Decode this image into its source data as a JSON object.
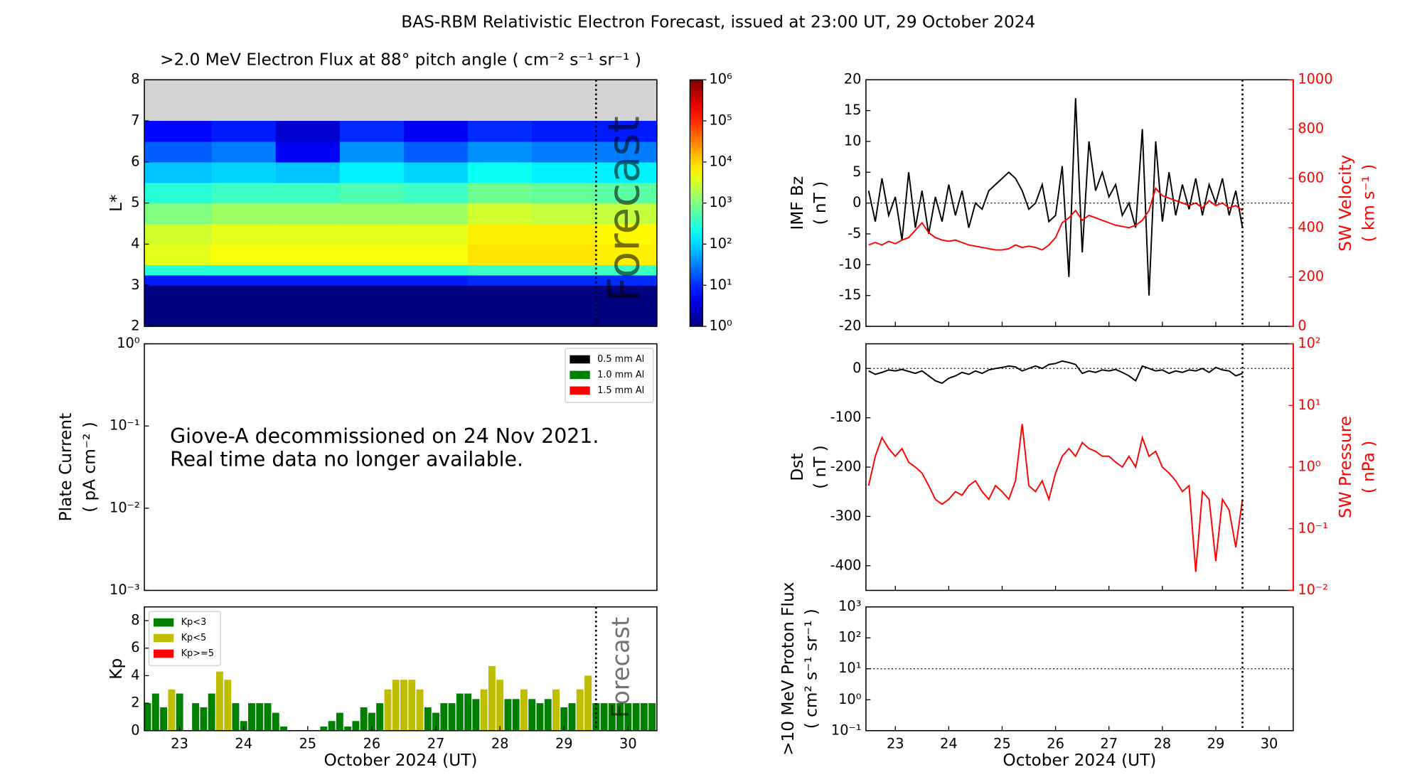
{
  "title": "BAS-RBM Relativistic Electron Forecast, issued at 23:00 UT, 29 October 2024",
  "chart_data": [
    {
      "type": "heatmap",
      "title": ">2.0 MeV Electron Flux at 88° pitch angle ( cm⁻² s⁻¹ sr⁻¹ )",
      "ylabel": "L*",
      "xlim": [
        22.45,
        30.45
      ],
      "ylim": [
        2,
        8
      ],
      "yticks": [
        2,
        3,
        4,
        5,
        6,
        7,
        8
      ],
      "no_data_color": "#d3d3d3",
      "x_edges": [
        22.45,
        23.5,
        24.5,
        25.5,
        26.5,
        27.5,
        28.5,
        29.5,
        30.45
      ],
      "y_edges": [
        2,
        3,
        3.25,
        3.5,
        4,
        4.5,
        5,
        5.5,
        6,
        6.5,
        7
      ],
      "values": [
        [
          1,
          1,
          1,
          1,
          1,
          1,
          1,
          1
        ],
        [
          8,
          8,
          8,
          8,
          8,
          10,
          10,
          10
        ],
        [
          300,
          300,
          300,
          300,
          300,
          400,
          400,
          400
        ],
        [
          4000,
          5000,
          5000,
          5000,
          5000,
          8000,
          8000,
          7000
        ],
        [
          3000,
          4000,
          4000,
          4000,
          4000,
          7000,
          7000,
          6000
        ],
        [
          1000,
          1500,
          1500,
          1500,
          1500,
          3000,
          2500,
          2500
        ],
        [
          300,
          400,
          400,
          500,
          400,
          800,
          700,
          600
        ],
        [
          80,
          100,
          80,
          150,
          100,
          200,
          150,
          150
        ],
        [
          20,
          30,
          5,
          40,
          20,
          40,
          30,
          30
        ],
        [
          6,
          8,
          3,
          10,
          5,
          10,
          8,
          8
        ]
      ],
      "colorscale": "jet",
      "color_lim": [
        1,
        1000000
      ],
      "colorbar_ticks": [
        {
          "value": 1,
          "label": "10⁰"
        },
        {
          "value": 10,
          "label": "10¹"
        },
        {
          "value": 100,
          "label": "10²"
        },
        {
          "value": 1000,
          "label": "10³"
        },
        {
          "value": 10000,
          "label": "10⁴"
        },
        {
          "value": 100000,
          "label": "10⁵"
        },
        {
          "value": 1000000,
          "label": "10⁶"
        }
      ],
      "watermark": "Forecast",
      "forecast_line": 29.5
    },
    {
      "type": "line",
      "ylabel": [
        "Plate Current",
        "( pA cm⁻² )"
      ],
      "xlim": [
        22.45,
        30.45
      ],
      "log_y": true,
      "ylim": [
        0.001,
        1
      ],
      "yticks": [
        {
          "value": 0.001,
          "label": "10⁻³"
        },
        {
          "value": 0.01,
          "label": "10⁻²"
        },
        {
          "value": 0.1,
          "label": "10⁻¹"
        },
        {
          "value": 1,
          "label": "10⁰"
        }
      ],
      "x": [],
      "series": [
        {
          "name": "0.5 mm Al",
          "color": "#000000",
          "values": []
        },
        {
          "name": "1.0 mm Al",
          "color": "#008000",
          "values": []
        },
        {
          "name": "1.5 mm Al",
          "color": "#ff0000",
          "values": []
        }
      ],
      "legend": "upper right",
      "annotations": [
        "Giove-A decommissioned on 24 Nov 2021.",
        "Real time data no longer available."
      ]
    },
    {
      "type": "bar",
      "ylabel": "Kp",
      "xlabel": "October 2024 (UT)",
      "xlim": [
        22.45,
        30.45
      ],
      "ylim": [
        0,
        9
      ],
      "yticks": [
        0,
        2,
        4,
        6,
        8
      ],
      "xticks": [
        23,
        24,
        25,
        26,
        27,
        28,
        29,
        30
      ],
      "series": [
        {
          "name": "Kp<3",
          "color": "#008000",
          "x": [
            22.5,
            22.625,
            22.75,
            23,
            23.25,
            23.375,
            23.5,
            23.875,
            24,
            24.125,
            24.25,
            24.375,
            24.5,
            24.625,
            25.25,
            25.375,
            25.5,
            25.625,
            25.75,
            25.875,
            26,
            26.125,
            26.875,
            27,
            27.125,
            27.25,
            27.375,
            27.5,
            27.625,
            28.125,
            28.25,
            28.5,
            28.625,
            28.75,
            29,
            29.125,
            29.5,
            29.625,
            29.75,
            29.875,
            30,
            30.125,
            30.25,
            30.375
          ],
          "values": [
            2.0,
            2.7,
            1.7,
            2.7,
            2.0,
            1.7,
            2.7,
            2.0,
            0.7,
            2.0,
            2.0,
            2.0,
            1.3,
            0.3,
            0.3,
            0.7,
            1.3,
            0.3,
            0.7,
            1.7,
            1.3,
            2.0,
            1.7,
            1.3,
            2.0,
            2.0,
            2.7,
            2.7,
            2.3,
            2.3,
            2.3,
            2.3,
            2.0,
            2.3,
            1.7,
            2.0,
            2.0,
            2.0,
            2.0,
            2.0,
            2.0,
            2.0,
            2.0,
            2.0
          ]
        },
        {
          "name": "Kp<5",
          "color": "#bfbf00",
          "x": [
            22.875,
            23.625,
            23.75,
            26.25,
            26.375,
            26.5,
            26.625,
            26.75,
            27.75,
            27.875,
            28,
            28.375,
            28.875,
            29.25,
            29.375
          ],
          "values": [
            3.0,
            4.3,
            3.7,
            3.0,
            3.7,
            3.7,
            3.7,
            3.0,
            3.0,
            4.7,
            3.7,
            3.0,
            3.0,
            3.0,
            4.0
          ]
        },
        {
          "name": "Kp>=5",
          "color": "#ff0000",
          "x": [],
          "values": []
        }
      ],
      "legend": "upper left",
      "watermark": "Forecast",
      "forecast_line": 29.5
    },
    {
      "type": "line",
      "ylabel": [
        "IMF Bz",
        "( nT )"
      ],
      "y2label": [
        "SW Velocity",
        "( km s⁻¹ )"
      ],
      "xlim": [
        22.45,
        30.45
      ],
      "ylim": [
        -20,
        20
      ],
      "yticks": [
        -20,
        -15,
        -10,
        -5,
        0,
        5,
        10,
        15,
        20
      ],
      "y2lim": [
        0,
        1000
      ],
      "y2ticks": [
        0,
        200,
        400,
        600,
        800,
        1000
      ],
      "y2color": "#ff0000",
      "hline": 0,
      "forecast_line": 29.5,
      "x": [
        22.5,
        22.625,
        22.75,
        22.875,
        23,
        23.125,
        23.25,
        23.375,
        23.5,
        23.625,
        23.75,
        23.875,
        24,
        24.125,
        24.25,
        24.375,
        24.5,
        24.625,
        24.75,
        24.875,
        25,
        25.125,
        25.25,
        25.375,
        25.5,
        25.625,
        25.75,
        25.875,
        26,
        26.125,
        26.25,
        26.375,
        26.5,
        26.625,
        26.75,
        26.875,
        27,
        27.125,
        27.25,
        27.375,
        27.5,
        27.625,
        27.75,
        27.875,
        28,
        28.125,
        28.25,
        28.375,
        28.5,
        28.625,
        28.75,
        28.875,
        29,
        29.125,
        29.25,
        29.375,
        29.5
      ],
      "series": [
        {
          "color": "#000000",
          "values": [
            2,
            -3,
            4,
            -2,
            1,
            -6,
            5,
            -4,
            2,
            -5,
            1,
            -3,
            3,
            -2,
            2,
            -4,
            0,
            -1,
            2,
            3,
            4,
            5,
            4,
            2,
            -1,
            0,
            3,
            -3,
            -2,
            6,
            -12,
            17,
            -8,
            10,
            2,
            5,
            1,
            3,
            -2,
            0,
            -4,
            12,
            -15,
            10,
            -3,
            5,
            -2,
            3,
            -1,
            4,
            -2,
            3,
            0,
            4,
            -2,
            2,
            -4
          ]
        },
        {
          "color": "#ff0000",
          "axis": "y2",
          "values": [
            330,
            340,
            330,
            345,
            335,
            350,
            360,
            390,
            420,
            380,
            360,
            350,
            345,
            350,
            340,
            330,
            325,
            320,
            315,
            310,
            310,
            315,
            330,
            320,
            325,
            320,
            310,
            330,
            360,
            420,
            440,
            470,
            430,
            450,
            440,
            430,
            420,
            410,
            405,
            400,
            410,
            430,
            470,
            560,
            530,
            520,
            510,
            500,
            490,
            500,
            480,
            510,
            490,
            500,
            480,
            490,
            470
          ]
        }
      ]
    },
    {
      "type": "line",
      "ylabel": [
        "Dst",
        "( nT )"
      ],
      "y2label": [
        "SW Pressure",
        "( nPa )"
      ],
      "xlim": [
        22.45,
        30.45
      ],
      "ylim": [
        -450,
        50
      ],
      "yticks": [
        -400,
        -300,
        -200,
        -100,
        0
      ],
      "log_y2": true,
      "y2lim": [
        0.01,
        100
      ],
      "y2color": "#ff0000",
      "y2ticks": [
        {
          "value": 0.01,
          "label": "10⁻²"
        },
        {
          "value": 0.1,
          "label": "10⁻¹"
        },
        {
          "value": 1,
          "label": "10⁰"
        },
        {
          "value": 10,
          "label": "10¹"
        },
        {
          "value": 100,
          "label": "10²"
        }
      ],
      "hline": 0,
      "forecast_line": 29.5,
      "x": [
        22.5,
        22.625,
        22.75,
        22.875,
        23,
        23.125,
        23.25,
        23.375,
        23.5,
        23.625,
        23.75,
        23.875,
        24,
        24.125,
        24.25,
        24.375,
        24.5,
        24.625,
        24.75,
        24.875,
        25,
        25.125,
        25.25,
        25.375,
        25.5,
        25.625,
        25.75,
        25.875,
        26,
        26.125,
        26.25,
        26.375,
        26.5,
        26.625,
        26.75,
        26.875,
        27,
        27.125,
        27.25,
        27.375,
        27.5,
        27.625,
        27.75,
        27.875,
        28,
        28.125,
        28.25,
        28.375,
        28.5,
        28.625,
        28.75,
        28.875,
        29,
        29.125,
        29.25,
        29.375,
        29.5
      ],
      "series": [
        {
          "color": "#000000",
          "values": [
            -5,
            -12,
            -8,
            -3,
            -5,
            -2,
            -6,
            -10,
            -5,
            -15,
            -25,
            -30,
            -20,
            -15,
            -8,
            -12,
            -5,
            -10,
            -3,
            0,
            2,
            5,
            3,
            -5,
            0,
            5,
            0,
            8,
            10,
            15,
            12,
            8,
            -10,
            -5,
            -8,
            -3,
            -5,
            -2,
            -8,
            -15,
            -25,
            5,
            0,
            -5,
            -3,
            -10,
            -5,
            -8,
            -3,
            -5,
            0,
            -8,
            2,
            -3,
            -5,
            -15,
            -10
          ]
        },
        {
          "color": "#ff0000",
          "axis": "y2",
          "values": [
            0.5,
            1.5,
            3,
            2,
            1.5,
            2,
            1.2,
            1,
            0.8,
            0.5,
            0.3,
            0.25,
            0.3,
            0.4,
            0.35,
            0.5,
            0.6,
            0.4,
            0.3,
            0.5,
            0.4,
            0.3,
            0.6,
            5,
            0.5,
            0.4,
            0.6,
            0.3,
            0.8,
            1.5,
            2,
            1.5,
            2.5,
            2,
            1.8,
            1.5,
            1.5,
            1.2,
            1,
            1.5,
            1,
            3,
            1.5,
            1.8,
            1,
            0.8,
            0.6,
            0.4,
            0.5,
            0.02,
            0.4,
            0.3,
            0.03,
            0.3,
            0.2,
            0.05,
            0.3
          ]
        }
      ]
    },
    {
      "type": "line",
      "ylabel": [
        ">10 MeV Proton Flux",
        "( cm² s⁻¹ sr⁻¹ )"
      ],
      "xlabel": "October 2024 (UT)",
      "xlim": [
        22.45,
        30.45
      ],
      "log_y": true,
      "ylim": [
        0.1,
        1000
      ],
      "yticks": [
        {
          "value": 0.1,
          "label": "10⁻¹"
        },
        {
          "value": 1,
          "label": "10⁰"
        },
        {
          "value": 10,
          "label": "10¹"
        },
        {
          "value": 100,
          "label": "10²"
        },
        {
          "value": 1000,
          "label": "10³"
        }
      ],
      "xticks": [
        23,
        24,
        25,
        26,
        27,
        28,
        29,
        30
      ],
      "hline": 10,
      "forecast_line": 29.5,
      "x": [],
      "series": []
    }
  ]
}
